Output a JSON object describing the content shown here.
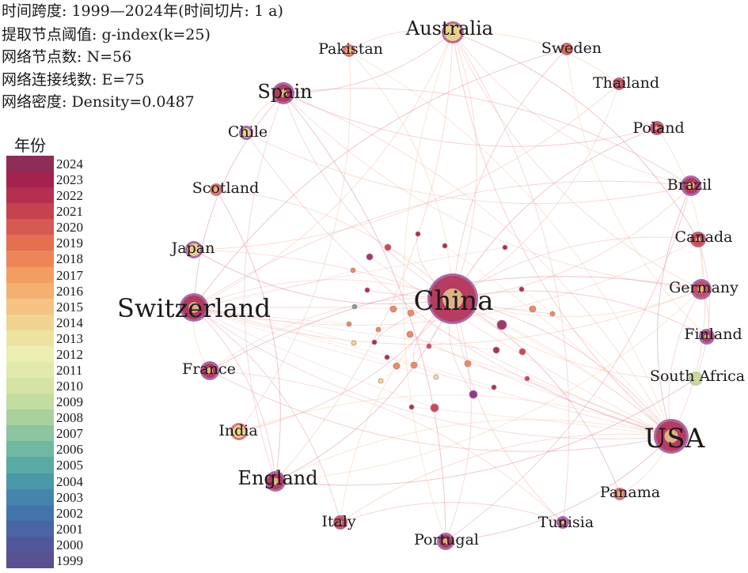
{
  "info": {
    "time_span": "时间跨度: 1999—2024年(时间切片: 1 a)",
    "threshold": "提取节点阈值: g-index(k=25)",
    "node_count": "网络节点数: N=56",
    "edge_count": "网络连接线数: E=75",
    "density": "网络密度: Density=0.0487"
  },
  "legend": {
    "title": "年份",
    "years": [
      "2024",
      "2023",
      "2022",
      "2021",
      "2020",
      "2019",
      "2018",
      "2017",
      "2016",
      "2015",
      "2014",
      "2013",
      "2012",
      "2011",
      "2010",
      "2009",
      "2008",
      "2007",
      "2006",
      "2005",
      "2004",
      "2003",
      "2002",
      "2001",
      "2000",
      "1999"
    ],
    "colors": [
      "#8e2d57",
      "#a3234e",
      "#b52f50",
      "#c6424f",
      "#d65a52",
      "#e46f51",
      "#ec8658",
      "#f29e63",
      "#f4b073",
      "#f4c384",
      "#f1d391",
      "#ede3a0",
      "#ebeeb0",
      "#e2e9ad",
      "#d4e4a4",
      "#c3dc9f",
      "#a9d19e",
      "#8cc5a0",
      "#70b8a2",
      "#58aaa4",
      "#4b98a8",
      "#4585ad",
      "#4375ac",
      "#4a65a5",
      "#52579b",
      "#58508f"
    ]
  },
  "countries": [
    {
      "label": "China",
      "size": 58
    },
    {
      "label": "USA",
      "size": 36
    },
    {
      "label": "Switzerland",
      "size": 32
    },
    {
      "label": "England",
      "size": 22
    },
    {
      "label": "Australia",
      "size": 22
    },
    {
      "label": "Spain",
      "size": 22
    },
    {
      "label": "Pakistan",
      "size": 17
    },
    {
      "label": "Sweden",
      "size": 17
    },
    {
      "label": "Thailand",
      "size": 17
    },
    {
      "label": "Poland",
      "size": 17
    },
    {
      "label": "Brazil",
      "size": 18
    },
    {
      "label": "Canada",
      "size": 17
    },
    {
      "label": "Germany",
      "size": 18
    },
    {
      "label": "Finland",
      "size": 17
    },
    {
      "label": "South Africa",
      "size": 17
    },
    {
      "label": "Panama",
      "size": 17
    },
    {
      "label": "Tunisia",
      "size": 17
    },
    {
      "label": "Portugal",
      "size": 17
    },
    {
      "label": "Italy",
      "size": 17
    },
    {
      "label": "India",
      "size": 17
    },
    {
      "label": "France",
      "size": 17
    },
    {
      "label": "Japan",
      "size": 17
    },
    {
      "label": "Scotland",
      "size": 17
    },
    {
      "label": "Chile",
      "size": 17
    }
  ]
}
